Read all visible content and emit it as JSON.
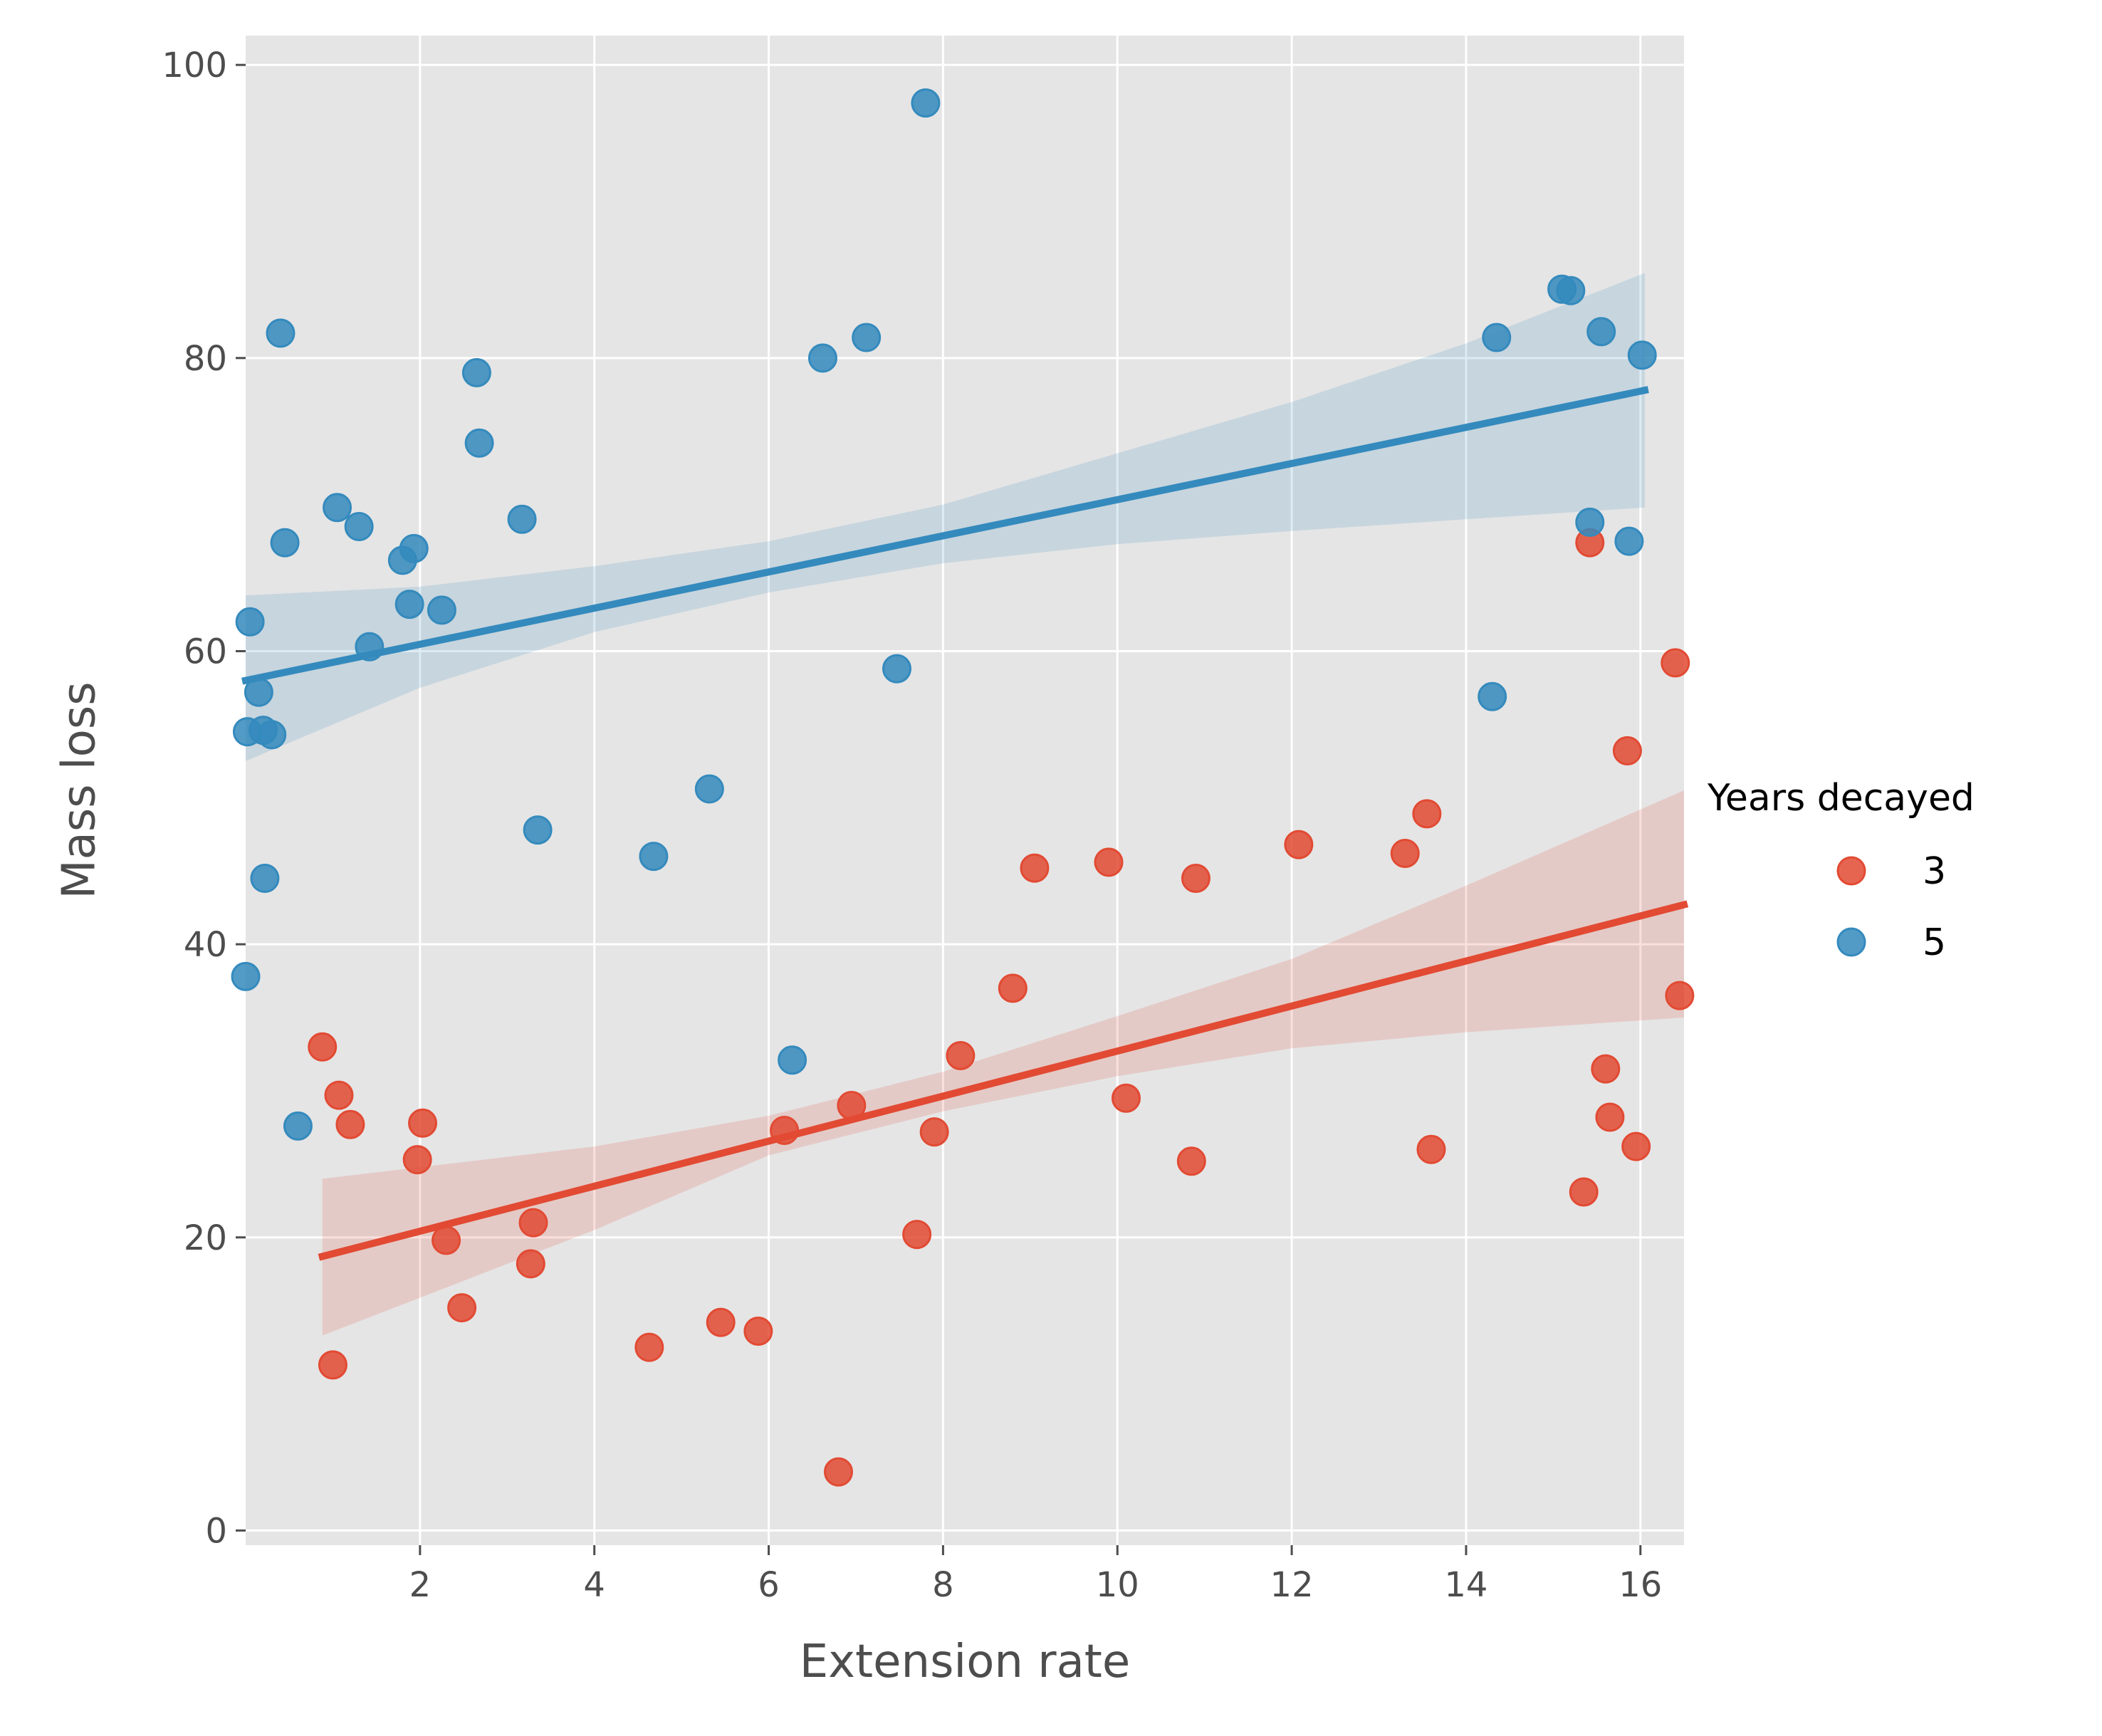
{
  "chart_data": {
    "type": "scatter",
    "xlabel": "Extension rate",
    "ylabel": "Mass loss",
    "xlim": [
      0,
      16.5
    ],
    "ylim": [
      -1,
      102
    ],
    "x_ticks": [
      2,
      4,
      6,
      8,
      10,
      12,
      14,
      16
    ],
    "y_ticks": [
      0,
      20,
      40,
      60,
      80,
      100
    ],
    "grid": true,
    "legend": {
      "title": "Years decayed",
      "position": "right"
    },
    "series": [
      {
        "name": "3",
        "color": "#E24A33",
        "regression": {
          "x": [
            0.88,
            16.5
          ],
          "y": [
            18.7,
            42.7
          ]
        },
        "ci_lower": [
          [
            0.88,
            13.3
          ],
          [
            4,
            20.5
          ],
          [
            6,
            25.6
          ],
          [
            8,
            28.6
          ],
          [
            10,
            31.0
          ],
          [
            12,
            32.9
          ],
          [
            14,
            34.0
          ],
          [
            16.5,
            35.0
          ]
        ],
        "ci_upper": [
          [
            0.88,
            24.0
          ],
          [
            4,
            26.2
          ],
          [
            6,
            28.3
          ],
          [
            8,
            31.3
          ],
          [
            10,
            35.1
          ],
          [
            12,
            39.0
          ],
          [
            14,
            44.0
          ],
          [
            16.5,
            50.5
          ]
        ],
        "points": [
          [
            0.88,
            33.0
          ],
          [
            1.0,
            11.3
          ],
          [
            1.07,
            29.7
          ],
          [
            1.2,
            27.7
          ],
          [
            1.97,
            25.3
          ],
          [
            2.03,
            27.8
          ],
          [
            2.3,
            19.8
          ],
          [
            2.48,
            15.2
          ],
          [
            3.27,
            18.2
          ],
          [
            3.3,
            21.0
          ],
          [
            4.63,
            12.5
          ],
          [
            5.45,
            14.2
          ],
          [
            5.88,
            13.6
          ],
          [
            6.18,
            27.3
          ],
          [
            6.8,
            4.0
          ],
          [
            6.95,
            29.0
          ],
          [
            7.7,
            20.2
          ],
          [
            7.9,
            27.2
          ],
          [
            8.2,
            32.4
          ],
          [
            8.8,
            37.0
          ],
          [
            9.05,
            45.2
          ],
          [
            9.9,
            45.6
          ],
          [
            10.1,
            29.5
          ],
          [
            10.85,
            25.2
          ],
          [
            10.9,
            44.5
          ],
          [
            12.08,
            46.8
          ],
          [
            13.3,
            46.2
          ],
          [
            13.55,
            48.9
          ],
          [
            13.6,
            26.0
          ],
          [
            15.35,
            23.1
          ],
          [
            15.42,
            67.4
          ],
          [
            15.6,
            31.5
          ],
          [
            15.65,
            28.2
          ],
          [
            15.85,
            53.2
          ],
          [
            15.95,
            26.2
          ],
          [
            16.4,
            59.2
          ],
          [
            16.45,
            36.5
          ]
        ]
      },
      {
        "name": "5",
        "color": "#348ABD",
        "regression": {
          "x": [
            0.0,
            16.05
          ],
          "y": [
            58.0,
            77.8
          ]
        },
        "ci_lower": [
          [
            0.0,
            52.5
          ],
          [
            2,
            57.5
          ],
          [
            4,
            61.3
          ],
          [
            6,
            64.0
          ],
          [
            8,
            66.0
          ],
          [
            10,
            67.3
          ],
          [
            12,
            68.2
          ],
          [
            14,
            69.0
          ],
          [
            16.05,
            69.8
          ]
        ],
        "ci_upper": [
          [
            0.0,
            63.8
          ],
          [
            2,
            64.4
          ],
          [
            4,
            65.8
          ],
          [
            6,
            67.5
          ],
          [
            8,
            70.0
          ],
          [
            10,
            73.5
          ],
          [
            12,
            77.0
          ],
          [
            14,
            81.0
          ],
          [
            16.05,
            85.8
          ]
        ],
        "points": [
          [
            0.0,
            37.8
          ],
          [
            0.02,
            54.5
          ],
          [
            0.05,
            62.0
          ],
          [
            0.15,
            57.2
          ],
          [
            0.2,
            54.6
          ],
          [
            0.22,
            44.5
          ],
          [
            0.3,
            54.3
          ],
          [
            0.4,
            81.7
          ],
          [
            0.45,
            67.4
          ],
          [
            0.6,
            27.6
          ],
          [
            1.05,
            69.8
          ],
          [
            1.3,
            68.5
          ],
          [
            1.42,
            60.3
          ],
          [
            1.8,
            66.2
          ],
          [
            1.88,
            63.2
          ],
          [
            1.93,
            67.0
          ],
          [
            2.25,
            62.8
          ],
          [
            2.65,
            79.0
          ],
          [
            2.68,
            74.2
          ],
          [
            3.17,
            69.0
          ],
          [
            3.35,
            47.8
          ],
          [
            4.68,
            46.0
          ],
          [
            5.32,
            50.6
          ],
          [
            6.27,
            32.1
          ],
          [
            6.62,
            80.0
          ],
          [
            7.12,
            81.4
          ],
          [
            7.47,
            58.8
          ],
          [
            7.8,
            97.4
          ],
          [
            14.3,
            56.9
          ],
          [
            14.35,
            81.4
          ],
          [
            15.1,
            84.7
          ],
          [
            15.2,
            84.6
          ],
          [
            15.42,
            68.8
          ],
          [
            15.55,
            81.8
          ],
          [
            15.87,
            67.5
          ],
          [
            16.02,
            80.2
          ]
        ]
      }
    ]
  }
}
